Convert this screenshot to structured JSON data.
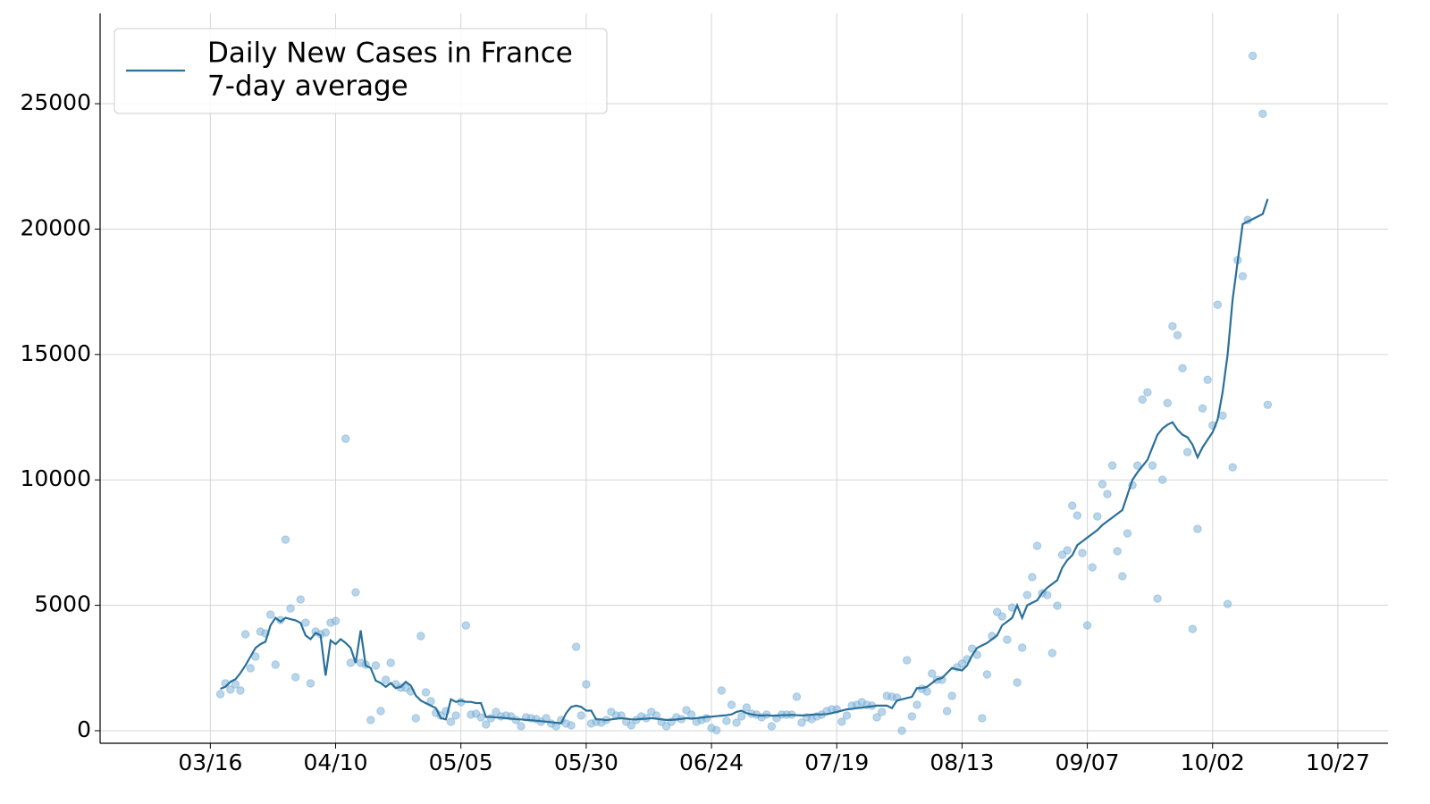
{
  "chart_data": {
    "type": "line",
    "x": [
      "03/18",
      "03/19",
      "03/20",
      "03/21",
      "03/22",
      "03/23",
      "03/24",
      "03/25",
      "03/26",
      "03/27",
      "03/28",
      "03/29",
      "03/30",
      "03/31",
      "04/01",
      "04/02",
      "04/03",
      "04/04",
      "04/05",
      "04/06",
      "04/07",
      "04/08",
      "04/09",
      "04/10",
      "04/11",
      "04/12",
      "04/13",
      "04/14",
      "04/15",
      "04/16",
      "04/17",
      "04/18",
      "04/19",
      "04/20",
      "04/21",
      "04/22",
      "04/23",
      "04/24",
      "04/25",
      "04/26",
      "04/27",
      "04/28",
      "04/29",
      "04/30",
      "05/01",
      "05/02",
      "05/03",
      "05/04",
      "05/05",
      "05/06",
      "05/07",
      "05/08",
      "05/09",
      "05/10",
      "05/11",
      "05/12",
      "05/13",
      "05/14",
      "05/15",
      "05/16",
      "05/17",
      "05/18",
      "05/19",
      "05/20",
      "05/21",
      "05/22",
      "05/23",
      "05/24",
      "05/25",
      "05/26",
      "05/27",
      "05/28",
      "05/29",
      "05/30",
      "05/31",
      "06/01",
      "06/02",
      "06/03",
      "06/04",
      "06/05",
      "06/06",
      "06/07",
      "06/08",
      "06/09",
      "06/10",
      "06/11",
      "06/12",
      "06/13",
      "06/14",
      "06/15",
      "06/16",
      "06/17",
      "06/18",
      "06/19",
      "06/20",
      "06/21",
      "06/22",
      "06/23",
      "06/24",
      "06/25",
      "06/26",
      "06/27",
      "06/28",
      "06/29",
      "06/30",
      "07/01",
      "07/02",
      "07/03",
      "07/04",
      "07/05",
      "07/06",
      "07/07",
      "07/08",
      "07/09",
      "07/10",
      "07/11",
      "07/12",
      "07/13",
      "07/14",
      "07/15",
      "07/16",
      "07/17",
      "07/18",
      "07/19",
      "07/20",
      "07/21",
      "07/22",
      "07/23",
      "07/24",
      "07/25",
      "07/26",
      "07/27",
      "07/28",
      "07/29",
      "07/30",
      "07/31",
      "08/01",
      "08/02",
      "08/03",
      "08/04",
      "08/05",
      "08/06",
      "08/07",
      "08/08",
      "08/09",
      "08/10",
      "08/11",
      "08/12",
      "08/13",
      "08/14",
      "08/15",
      "08/16",
      "08/17",
      "08/18",
      "08/19",
      "08/20",
      "08/21",
      "08/22",
      "08/23",
      "08/24",
      "08/25",
      "08/26",
      "08/27",
      "08/28",
      "08/29",
      "08/30",
      "08/31",
      "09/01",
      "09/02",
      "09/03",
      "09/04",
      "09/05",
      "09/06",
      "09/07",
      "09/08",
      "09/09",
      "09/10",
      "09/11",
      "09/12",
      "09/13",
      "09/14",
      "09/15",
      "09/16",
      "09/17",
      "09/18",
      "09/19",
      "09/20",
      "09/21",
      "09/22",
      "09/23",
      "09/24",
      "09/25",
      "09/26",
      "09/27",
      "09/28",
      "09/29",
      "09/30",
      "10/01",
      "10/02",
      "10/03",
      "10/04",
      "10/05",
      "10/06",
      "10/07",
      "10/08",
      "10/09",
      "10/10",
      "10/11",
      "10/12",
      "10/13"
    ],
    "series": [
      {
        "type": "scatter",
        "color": "#7fb2d9",
        "values": [
          1460,
          1887,
          1638,
          1851,
          1602,
          3845,
          2492,
          2955,
          3952,
          3880,
          4628,
          2634,
          4414,
          7618,
          4877,
          2136,
          5233,
          4308,
          1887,
          3952,
          3845,
          3916,
          4308,
          4379,
          null,
          11641,
          2706,
          5518,
          2706,
          2634,
          427,
          2599,
          783,
          2029,
          2706,
          1851,
          1709,
          1709,
          1566,
          498,
          3774,
          1531,
          1175,
          712,
          605,
          783,
          356,
          605,
          1139,
          4201,
          641,
          676,
          534,
          249,
          498,
          748,
          570,
          605,
          570,
          427,
          178,
          534,
          498,
          463,
          356,
          498,
          285,
          178,
          427,
          285,
          214,
          3346,
          605,
          1851,
          285,
          356,
          320,
          427,
          748,
          605,
          605,
          356,
          214,
          427,
          570,
          498,
          748,
          605,
          356,
          178,
          356,
          534,
          463,
          819,
          641,
          356,
          427,
          498,
          107,
          20,
          1602,
          392,
          1032,
          320,
          570,
          926,
          676,
          641,
          534,
          641,
          178,
          498,
          641,
          641,
          641,
          1353,
          320,
          534,
          463,
          570,
          641,
          783,
          854,
          854,
          356,
          605,
          997,
          1032,
          1139,
          1032,
          997,
          534,
          748,
          1388,
          1353,
          1317,
          0,
          2812,
          570,
          1032,
          1673,
          1566,
          2279,
          2029,
          2029,
          783,
          1388,
          2528,
          2670,
          2848,
          3275,
          3026,
          498,
          2243,
          3774,
          4735,
          4557,
          3631,
          4913,
          1922,
          3311,
          5411,
          6123,
          7370,
          5482,
          5411,
          3097,
          4984,
          7013,
          7191,
          8972,
          8580,
          7085,
          4201,
          6515,
          8544,
          9826,
          9434,
          10573,
          7156,
          6159,
          7868,
          9790,
          10573,
          13208,
          13492,
          10573,
          5269,
          10004,
          13065,
          16126,
          15770,
          14453,
          11107,
          4058,
          8046,
          12851,
          13990,
          12175,
          16981,
          12566,
          5055,
          10502,
          18761,
          18120,
          20363,
          26912,
          null,
          24600,
          12994
        ]
      },
      {
        "name": "Daily New Cases in France\n7-day average",
        "color": "#2a7098",
        "values": [
          1670,
          1750,
          1950,
          2050,
          2300,
          2600,
          2950,
          3300,
          3450,
          3550,
          4200,
          4500,
          4350,
          4500,
          4450,
          4400,
          4300,
          3800,
          3650,
          3900,
          3800,
          2200,
          3600,
          3450,
          3650,
          3500,
          3300,
          2700,
          4000,
          2600,
          2500,
          2000,
          1900,
          1750,
          1900,
          1700,
          1750,
          1950,
          1800,
          1400,
          1200,
          1100,
          1000,
          900,
          500,
          450,
          1250,
          1150,
          1200,
          1150,
          1150,
          1100,
          1100,
          550,
          550,
          530,
          520,
          500,
          480,
          460,
          450,
          430,
          420,
          400,
          380,
          360,
          340,
          320,
          300,
          700,
          950,
          1000,
          950,
          800,
          800,
          450,
          450,
          420,
          450,
          480,
          500,
          480,
          450,
          450,
          470,
          480,
          500,
          480,
          450,
          430,
          430,
          450,
          470,
          500,
          480,
          500,
          520,
          550,
          560,
          580,
          600,
          620,
          650,
          750,
          800,
          700,
          650,
          620,
          600,
          620,
          600,
          600,
          620,
          620,
          630,
          620,
          610,
          620,
          640,
          650,
          650,
          660,
          700,
          750,
          800,
          850,
          870,
          900,
          920,
          950,
          970,
          1000,
          1000,
          1000,
          900,
          1200,
          1250,
          1300,
          1350,
          1700,
          1700,
          1750,
          1900,
          2050,
          2100,
          2300,
          2500,
          2450,
          2400,
          2600,
          3000,
          3300,
          3400,
          3500,
          3650,
          3800,
          4200,
          4350,
          4500,
          5000,
          4500,
          5000,
          5100,
          5200,
          5500,
          5700,
          5850,
          6000,
          6500,
          6800,
          7000,
          7400,
          7550,
          7700,
          7850,
          8000,
          8200,
          8350,
          8500,
          8650,
          8800,
          9400,
          10000,
          10300,
          10550,
          10800,
          11300,
          11800,
          12050,
          12200,
          12300,
          12000,
          11800,
          11700,
          11400,
          10900,
          11300,
          11600,
          11900,
          12400,
          13500,
          15000,
          17200,
          18700,
          20200,
          20300,
          20400,
          20500,
          20600,
          21200
        ]
      }
    ],
    "xlim": [
      "02/22",
      "11/06"
    ],
    "xticks": [
      "03/16",
      "04/10",
      "05/05",
      "05/30",
      "06/24",
      "07/19",
      "08/13",
      "09/07",
      "10/02",
      "10/27"
    ],
    "ylim": [
      -500,
      28600
    ],
    "yticks": [
      0,
      5000,
      10000,
      15000,
      20000,
      25000
    ],
    "grid": true,
    "legend": "upper left"
  }
}
